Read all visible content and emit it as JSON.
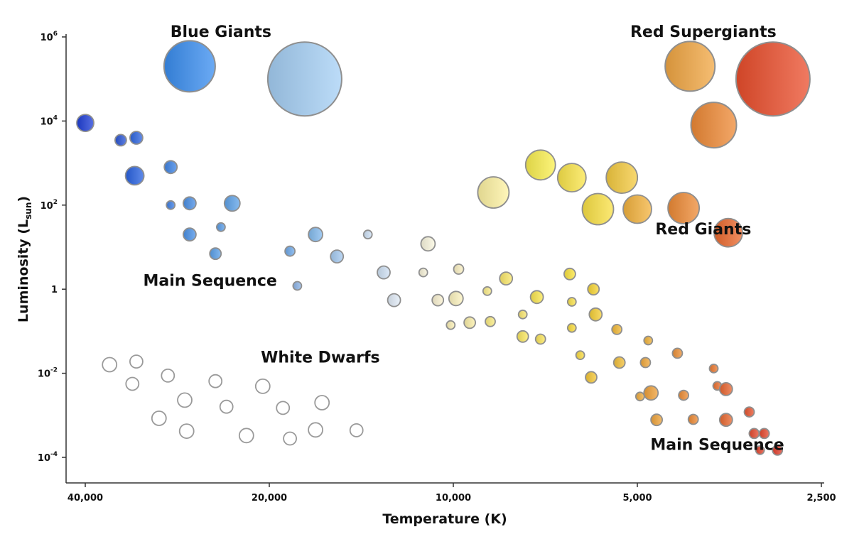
{
  "chart_data": {
    "type": "scatter",
    "title": "",
    "xlabel": "Temperature (K)",
    "ylabel_main": "Luminosity (L",
    "ylabel_sub": "sun",
    "ylabel_close": ")",
    "x_scale": "log-reversed",
    "y_scale": "log",
    "xlim": [
      44000,
      2500
    ],
    "ylim": [
      3e-05,
      1000000
    ],
    "x_ticks": [
      {
        "value": 40000,
        "label": "40,000"
      },
      {
        "value": 20000,
        "label": "20,000"
      },
      {
        "value": 10000,
        "label": "10,000"
      },
      {
        "value": 5000,
        "label": "5,000"
      },
      {
        "value": 2500,
        "label": "2,500"
      }
    ],
    "y_ticks": [
      {
        "value": 1000000,
        "base": "10",
        "exp": "6"
      },
      {
        "value": 10000,
        "base": "10",
        "exp": "4"
      },
      {
        "value": 100,
        "base": "10",
        "exp": "2"
      },
      {
        "value": 1,
        "base": "1",
        "exp": ""
      },
      {
        "value": 0.01,
        "base": "10",
        "exp": "-2"
      },
      {
        "value": 0.0001,
        "base": "10",
        "exp": "-4"
      }
    ],
    "region_labels": [
      {
        "text": "Blue Giants",
        "x": 24000,
        "y": 1000000
      },
      {
        "text": "Red Supergiants",
        "x": 3900,
        "y": 1000000
      },
      {
        "text": "Main Sequence",
        "x": 25000,
        "y": 1.2
      },
      {
        "text": "Red Giants",
        "x": 3900,
        "y": 20
      },
      {
        "text": "White Dwarfs",
        "x": 16500,
        "y": 0.018
      },
      {
        "text": "Main Sequence",
        "x": 3700,
        "y": 0.00015
      }
    ],
    "grid": false,
    "legend": "none",
    "series": [
      {
        "name": "Blue Giants",
        "points": [
          {
            "x": 27000,
            "y": 200000,
            "size": 36,
            "color": "#3a8ef0"
          },
          {
            "x": 17500,
            "y": 100000,
            "size": 52,
            "color": "#a6d0f5"
          }
        ]
      },
      {
        "name": "Red Supergiants",
        "points": [
          {
            "x": 4100,
            "y": 200000,
            "size": 35,
            "color": "#f2a743"
          },
          {
            "x": 3000,
            "y": 100000,
            "size": 52,
            "color": "#eb4e2c"
          },
          {
            "x": 3750,
            "y": 8000,
            "size": 32,
            "color": "#ef8a35"
          }
        ]
      },
      {
        "name": "Red Giants",
        "points": [
          {
            "x": 7200,
            "y": 900,
            "size": 21,
            "color": "#fbf04f"
          },
          {
            "x": 8600,
            "y": 200,
            "size": 22,
            "color": "#fff3a3"
          },
          {
            "x": 6400,
            "y": 450,
            "size": 20,
            "color": "#fbe54a"
          },
          {
            "x": 5300,
            "y": 450,
            "size": 22,
            "color": "#f5cb40"
          },
          {
            "x": 5800,
            "y": 80,
            "size": 22,
            "color": "#fbe245"
          },
          {
            "x": 5000,
            "y": 80,
            "size": 20,
            "color": "#f4b33d"
          },
          {
            "x": 4200,
            "y": 85,
            "size": 22,
            "color": "#ef8b35"
          },
          {
            "x": 3550,
            "y": 22,
            "size": 20,
            "color": "#ec6a2e"
          }
        ]
      },
      {
        "name": "Main Sequence",
        "points": [
          {
            "x": 40000,
            "y": 9000,
            "size": 12,
            "color": "#1f3fd8"
          },
          {
            "x": 35000,
            "y": 3500,
            "size": 8,
            "color": "#2a55d6"
          },
          {
            "x": 33000,
            "y": 4000,
            "size": 9,
            "color": "#2f66e0"
          },
          {
            "x": 33200,
            "y": 500,
            "size": 13,
            "color": "#2963e2"
          },
          {
            "x": 29000,
            "y": 800,
            "size": 9,
            "color": "#3e84e6"
          },
          {
            "x": 29000,
            "y": 100,
            "size": 6,
            "color": "#3e7fe4"
          },
          {
            "x": 27000,
            "y": 110,
            "size": 9,
            "color": "#4a8fe6"
          },
          {
            "x": 23000,
            "y": 110,
            "size": 11,
            "color": "#5fa4ea"
          },
          {
            "x": 24000,
            "y": 30,
            "size": 6,
            "color": "#5a9de8"
          },
          {
            "x": 27000,
            "y": 20,
            "size": 9,
            "color": "#4a92e8"
          },
          {
            "x": 24500,
            "y": 7,
            "size": 8,
            "color": "#5aa0ea"
          },
          {
            "x": 18500,
            "y": 8,
            "size": 7,
            "color": "#6ea9ea"
          },
          {
            "x": 16800,
            "y": 20,
            "size": 10,
            "color": "#84bbef"
          },
          {
            "x": 18000,
            "y": 1.2,
            "size": 6,
            "color": "#8db5e8"
          },
          {
            "x": 15500,
            "y": 6,
            "size": 9,
            "color": "#a6cbf2"
          },
          {
            "x": 13800,
            "y": 20,
            "size": 6,
            "color": "#cfe2f7"
          },
          {
            "x": 13000,
            "y": 2.5,
            "size": 9,
            "color": "#d0e2f5"
          },
          {
            "x": 12500,
            "y": 0.55,
            "size": 9,
            "color": "#e2ecf8"
          },
          {
            "x": 11000,
            "y": 12,
            "size": 10,
            "color": "#fbf8e0"
          },
          {
            "x": 11200,
            "y": 2.5,
            "size": 6,
            "color": "#f7f2d8"
          },
          {
            "x": 10600,
            "y": 0.55,
            "size": 8,
            "color": "#fbf3d2"
          },
          {
            "x": 9800,
            "y": 3,
            "size": 7,
            "color": "#fcf2c4"
          },
          {
            "x": 9900,
            "y": 0.6,
            "size": 10,
            "color": "#fdf4c0"
          },
          {
            "x": 10100,
            "y": 0.14,
            "size": 6,
            "color": "#fbf0b5"
          },
          {
            "x": 9400,
            "y": 0.16,
            "size": 8,
            "color": "#fcf0a8"
          },
          {
            "x": 8800,
            "y": 0.9,
            "size": 6,
            "color": "#fbec88"
          },
          {
            "x": 8700,
            "y": 0.17,
            "size": 7,
            "color": "#fbec80"
          },
          {
            "x": 8200,
            "y": 1.8,
            "size": 9,
            "color": "#fbe86a"
          },
          {
            "x": 7700,
            "y": 0.25,
            "size": 6,
            "color": "#fbe870"
          },
          {
            "x": 7700,
            "y": 0.075,
            "size": 8,
            "color": "#fbe85f"
          },
          {
            "x": 7300,
            "y": 0.65,
            "size": 9,
            "color": "#fbe74e"
          },
          {
            "x": 7200,
            "y": 0.065,
            "size": 7,
            "color": "#fbe55a"
          },
          {
            "x": 6450,
            "y": 2.3,
            "size": 8,
            "color": "#fbe43e"
          },
          {
            "x": 6400,
            "y": 0.5,
            "size": 6,
            "color": "#fbe34a"
          },
          {
            "x": 6400,
            "y": 0.12,
            "size": 6,
            "color": "#fbdd3a"
          },
          {
            "x": 6200,
            "y": 0.027,
            "size": 6,
            "color": "#fbdc40"
          },
          {
            "x": 5900,
            "y": 1,
            "size": 8,
            "color": "#f8d633"
          },
          {
            "x": 5850,
            "y": 0.25,
            "size": 9,
            "color": "#f7d035"
          },
          {
            "x": 5950,
            "y": 0.008,
            "size": 8,
            "color": "#f5c734"
          },
          {
            "x": 5400,
            "y": 0.11,
            "size": 7,
            "color": "#f3b936"
          },
          {
            "x": 5350,
            "y": 0.018,
            "size": 8,
            "color": "#f3c03a"
          },
          {
            "x": 4800,
            "y": 0.06,
            "size": 6,
            "color": "#f2b33a"
          },
          {
            "x": 4850,
            "y": 0.018,
            "size": 7,
            "color": "#f2a83a"
          },
          {
            "x": 4950,
            "y": 0.0028,
            "size": 6,
            "color": "#f1ad3e"
          },
          {
            "x": 4750,
            "y": 0.0034,
            "size": 10,
            "color": "#f0a038"
          },
          {
            "x": 4650,
            "y": 0.00078,
            "size": 8,
            "color": "#f0a43a"
          },
          {
            "x": 4300,
            "y": 0.03,
            "size": 7,
            "color": "#ee9035"
          },
          {
            "x": 4200,
            "y": 0.003,
            "size": 7,
            "color": "#ee8d35"
          },
          {
            "x": 4050,
            "y": 0.0008,
            "size": 7,
            "color": "#ee8a33"
          },
          {
            "x": 3750,
            "y": 0.013,
            "size": 6,
            "color": "#ec7a30"
          },
          {
            "x": 3700,
            "y": 0.005,
            "size": 6,
            "color": "#ec7130"
          },
          {
            "x": 3580,
            "y": 0.0042,
            "size": 9,
            "color": "#ea6530"
          },
          {
            "x": 3580,
            "y": 0.00078,
            "size": 9,
            "color": "#ea6830"
          },
          {
            "x": 3280,
            "y": 0.0012,
            "size": 7,
            "color": "#e8532e"
          },
          {
            "x": 3220,
            "y": 0.00037,
            "size": 7,
            "color": "#e64a2e"
          },
          {
            "x": 3100,
            "y": 0.00037,
            "size": 7,
            "color": "#e6482e"
          },
          {
            "x": 3150,
            "y": 0.000148,
            "size": 6,
            "color": "#e4452e"
          },
          {
            "x": 2950,
            "y": 0.000148,
            "size": 7,
            "color": "#e4402c"
          }
        ]
      },
      {
        "name": "White Dwarfs",
        "points": [
          {
            "x": 36500,
            "y": 0.016,
            "size": 10,
            "color": "#ffffff"
          },
          {
            "x": 33000,
            "y": 0.019,
            "size": 9,
            "color": "#ffffff"
          },
          {
            "x": 33500,
            "y": 0.0056,
            "size": 9,
            "color": "#ffffff"
          },
          {
            "x": 29300,
            "y": 0.0088,
            "size": 9,
            "color": "#ffffff"
          },
          {
            "x": 30300,
            "y": 0.00085,
            "size": 10,
            "color": "#ffffff"
          },
          {
            "x": 27500,
            "y": 0.0023,
            "size": 10,
            "color": "#ffffff"
          },
          {
            "x": 27300,
            "y": 0.00042,
            "size": 10,
            "color": "#ffffff"
          },
          {
            "x": 24500,
            "y": 0.0065,
            "size": 9,
            "color": "#ffffff"
          },
          {
            "x": 23500,
            "y": 0.0016,
            "size": 9,
            "color": "#ffffff"
          },
          {
            "x": 21800,
            "y": 0.00033,
            "size": 10,
            "color": "#ffffff"
          },
          {
            "x": 20500,
            "y": 0.0049,
            "size": 10,
            "color": "#ffffff"
          },
          {
            "x": 19000,
            "y": 0.0015,
            "size": 9,
            "color": "#ffffff"
          },
          {
            "x": 18500,
            "y": 0.00028,
            "size": 9,
            "color": "#ffffff"
          },
          {
            "x": 16800,
            "y": 0.00045,
            "size": 10,
            "color": "#ffffff"
          },
          {
            "x": 16400,
            "y": 0.002,
            "size": 10,
            "color": "#ffffff"
          },
          {
            "x": 14400,
            "y": 0.00044,
            "size": 9,
            "color": "#ffffff"
          }
        ]
      }
    ]
  }
}
